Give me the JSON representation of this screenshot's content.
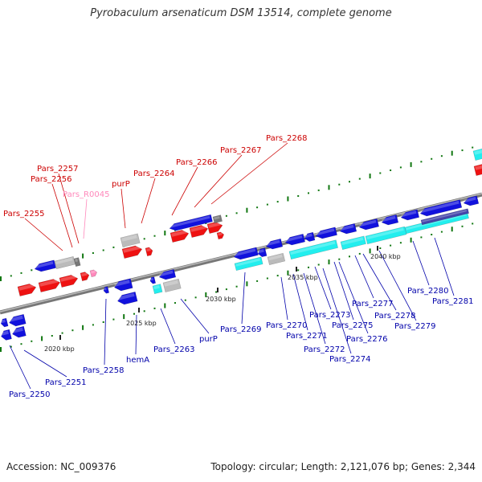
{
  "title": "Pyrobaculum arsenaticum DSM 13514, complete genome",
  "footer": {
    "accession": "Accession: NC_009376",
    "summary": "Topology: circular; Length: 2,121,076 bp; Genes: 2,344"
  },
  "colors": {
    "forward_cds": "#ee1111",
    "reverse_cds": "#1111dd",
    "rna": "#ff88bb",
    "pseudo_gray": "#bbbbbb",
    "cyan_feature": "#22eeee",
    "backbone": "#888888",
    "gc_tick": "#117711"
  },
  "scale_ticks": [
    {
      "label": "2020 kbp"
    },
    {
      "label": "2025 kbp"
    },
    {
      "label": "2030 kbp"
    },
    {
      "label": "2035 kbp"
    },
    {
      "label": "2040 kbp"
    }
  ],
  "upper_labels": [
    {
      "text": "Pars_2255",
      "color": "#cc0000"
    },
    {
      "text": "Pars_2256",
      "color": "#cc0000"
    },
    {
      "text": "Pars_2257",
      "color": "#cc0000"
    },
    {
      "text": "Pars_R0045",
      "color": "#ff88bb"
    },
    {
      "text": "purP",
      "color": "#cc0000"
    },
    {
      "text": "Pars_2264",
      "color": "#cc0000"
    },
    {
      "text": "Pars_2266",
      "color": "#cc0000"
    },
    {
      "text": "Pars_2267",
      "color": "#cc0000"
    },
    {
      "text": "Pars_2268",
      "color": "#cc0000"
    }
  ],
  "lower_labels": [
    {
      "text": "Pars_2250",
      "color": "#0000aa"
    },
    {
      "text": "Pars_2251",
      "color": "#0000aa"
    },
    {
      "text": "Pars_2258",
      "color": "#0000aa"
    },
    {
      "text": "hemA",
      "color": "#0000aa"
    },
    {
      "text": "Pars_2263",
      "color": "#0000aa"
    },
    {
      "text": "purP",
      "color": "#0000aa"
    },
    {
      "text": "Pars_2269",
      "color": "#0000aa"
    },
    {
      "text": "Pars_2270",
      "color": "#0000aa"
    },
    {
      "text": "Pars_2271",
      "color": "#0000aa"
    },
    {
      "text": "Pars_2272",
      "color": "#0000aa"
    },
    {
      "text": "Pars_2273",
      "color": "#0000aa"
    },
    {
      "text": "Pars_2274",
      "color": "#0000aa"
    },
    {
      "text": "Pars_2275",
      "color": "#0000aa"
    },
    {
      "text": "Pars_2276",
      "color": "#0000aa"
    },
    {
      "text": "Pars_2277",
      "color": "#0000aa"
    },
    {
      "text": "Pars_2278",
      "color": "#0000aa"
    },
    {
      "text": "Pars_2279",
      "color": "#0000aa"
    },
    {
      "text": "Pars_2280",
      "color": "#0000aa"
    },
    {
      "text": "Pars_2281",
      "color": "#0000aa"
    }
  ]
}
